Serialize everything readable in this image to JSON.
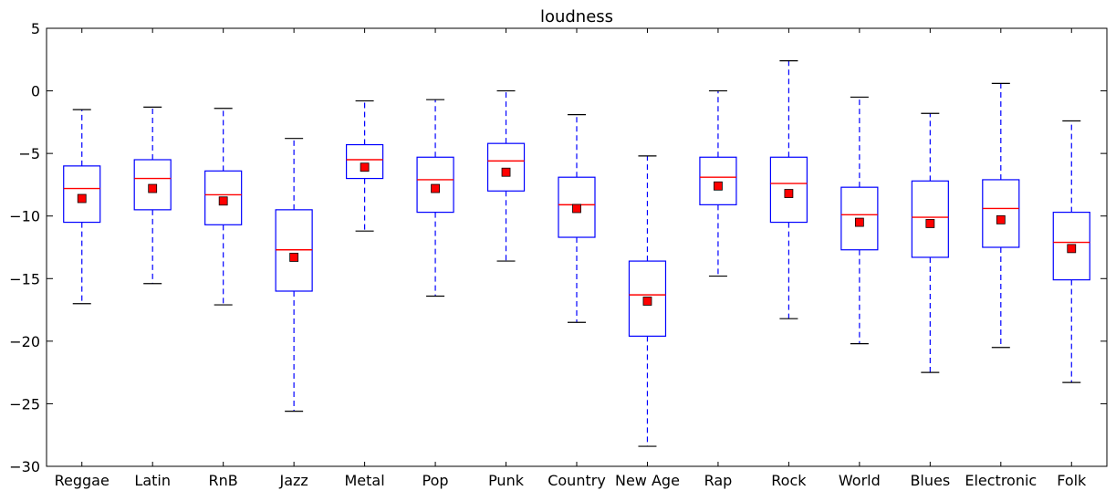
{
  "chart_data": {
    "type": "boxplot",
    "title": "loudness",
    "xlabel": "",
    "ylabel": "",
    "ylim": [
      -30,
      5
    ],
    "yticks": [
      5,
      0,
      -5,
      -10,
      -15,
      -20,
      -25,
      -30
    ],
    "grid": false,
    "legend": "none",
    "colors": {
      "box": "#0000ff",
      "whisker": "#0000ff",
      "cap": "#000000",
      "median": "#ff0000",
      "mean_marker": "#ff0000",
      "mean_marker_edge": "#000000",
      "axes": "#000000"
    },
    "categories": [
      "Reggae",
      "Latin",
      "RnB",
      "Jazz",
      "Metal",
      "Pop",
      "Punk",
      "Country",
      "New Age",
      "Rap",
      "Rock",
      "World",
      "Blues",
      "Electronic",
      "Folk"
    ],
    "series": [
      {
        "whislo": -17.0,
        "q1": -10.5,
        "med": -7.8,
        "q3": -6.0,
        "whishi": -1.5,
        "mean": -8.6
      },
      {
        "whislo": -15.4,
        "q1": -9.5,
        "med": -7.0,
        "q3": -5.5,
        "whishi": -1.3,
        "mean": -7.8
      },
      {
        "whislo": -17.1,
        "q1": -10.7,
        "med": -8.3,
        "q3": -6.4,
        "whishi": -1.4,
        "mean": -8.8
      },
      {
        "whislo": -25.6,
        "q1": -16.0,
        "med": -12.7,
        "q3": -9.5,
        "whishi": -3.8,
        "mean": -13.3
      },
      {
        "whislo": -11.2,
        "q1": -7.0,
        "med": -5.5,
        "q3": -4.3,
        "whishi": -0.8,
        "mean": -6.1
      },
      {
        "whislo": -16.4,
        "q1": -9.7,
        "med": -7.1,
        "q3": -5.3,
        "whishi": -0.7,
        "mean": -7.8
      },
      {
        "whislo": -13.6,
        "q1": -8.0,
        "med": -5.6,
        "q3": -4.2,
        "whishi": 0.0,
        "mean": -6.5
      },
      {
        "whislo": -18.5,
        "q1": -11.7,
        "med": -9.1,
        "q3": -6.9,
        "whishi": -1.9,
        "mean": -9.4
      },
      {
        "whislo": -28.4,
        "q1": -19.6,
        "med": -16.3,
        "q3": -13.6,
        "whishi": -5.2,
        "mean": -16.8
      },
      {
        "whislo": -14.8,
        "q1": -9.1,
        "med": -6.9,
        "q3": -5.3,
        "whishi": 0.0,
        "mean": -7.6
      },
      {
        "whislo": -18.2,
        "q1": -10.5,
        "med": -7.4,
        "q3": -5.3,
        "whishi": 2.4,
        "mean": -8.2
      },
      {
        "whislo": -20.2,
        "q1": -12.7,
        "med": -9.9,
        "q3": -7.7,
        "whishi": -0.5,
        "mean": -10.5
      },
      {
        "whislo": -22.5,
        "q1": -13.3,
        "med": -10.1,
        "q3": -7.2,
        "whishi": -1.8,
        "mean": -10.6
      },
      {
        "whislo": -20.5,
        "q1": -12.5,
        "med": -9.4,
        "q3": -7.1,
        "whishi": 0.6,
        "mean": -10.3
      },
      {
        "whislo": -23.3,
        "q1": -15.1,
        "med": -12.1,
        "q3": -9.7,
        "whishi": -2.4,
        "mean": -12.6
      }
    ]
  }
}
